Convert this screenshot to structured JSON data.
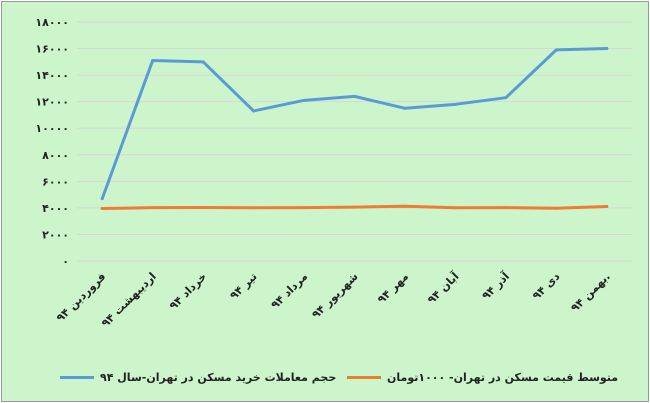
{
  "chart_data": {
    "type": "line",
    "categories": [
      "فروردین ۹۴",
      "اردیبهشت ۹۴",
      "خرداد ۹۴",
      "تیر ۹۴",
      "مرداد ۹۴",
      "شهریور ۹۴",
      "مهر ۹۴",
      "آبان ۹۴",
      "آذر ۹۴",
      "دی ۹۴",
      "بهمن ۹۴."
    ],
    "series": [
      {
        "name": "حجم معاملات خرید مسکن در تهران-سال ۹۴",
        "color": "#5b9bd5",
        "values": [
          4700,
          15100,
          15000,
          11300,
          12100,
          12400,
          11500,
          11800,
          12300,
          15900,
          16000
        ]
      },
      {
        "name": "متوسط قیمت مسکن در تهران- ۱۰۰۰تومان",
        "color": "#ed7d31",
        "values": [
          3950,
          4020,
          4030,
          4010,
          4020,
          4060,
          4120,
          4010,
          4020,
          3970,
          4100
        ]
      }
    ],
    "yticks": [
      "۰",
      "۲۰۰۰",
      "۴۰۰۰",
      "۶۰۰۰",
      "۸۰۰۰",
      "۱۰۰۰۰",
      "۱۲۰۰۰",
      "۱۴۰۰۰",
      "۱۶۰۰۰",
      "۱۸۰۰۰"
    ],
    "ylim": [
      0,
      18000
    ],
    "grid": true,
    "legend_position": "bottom"
  }
}
